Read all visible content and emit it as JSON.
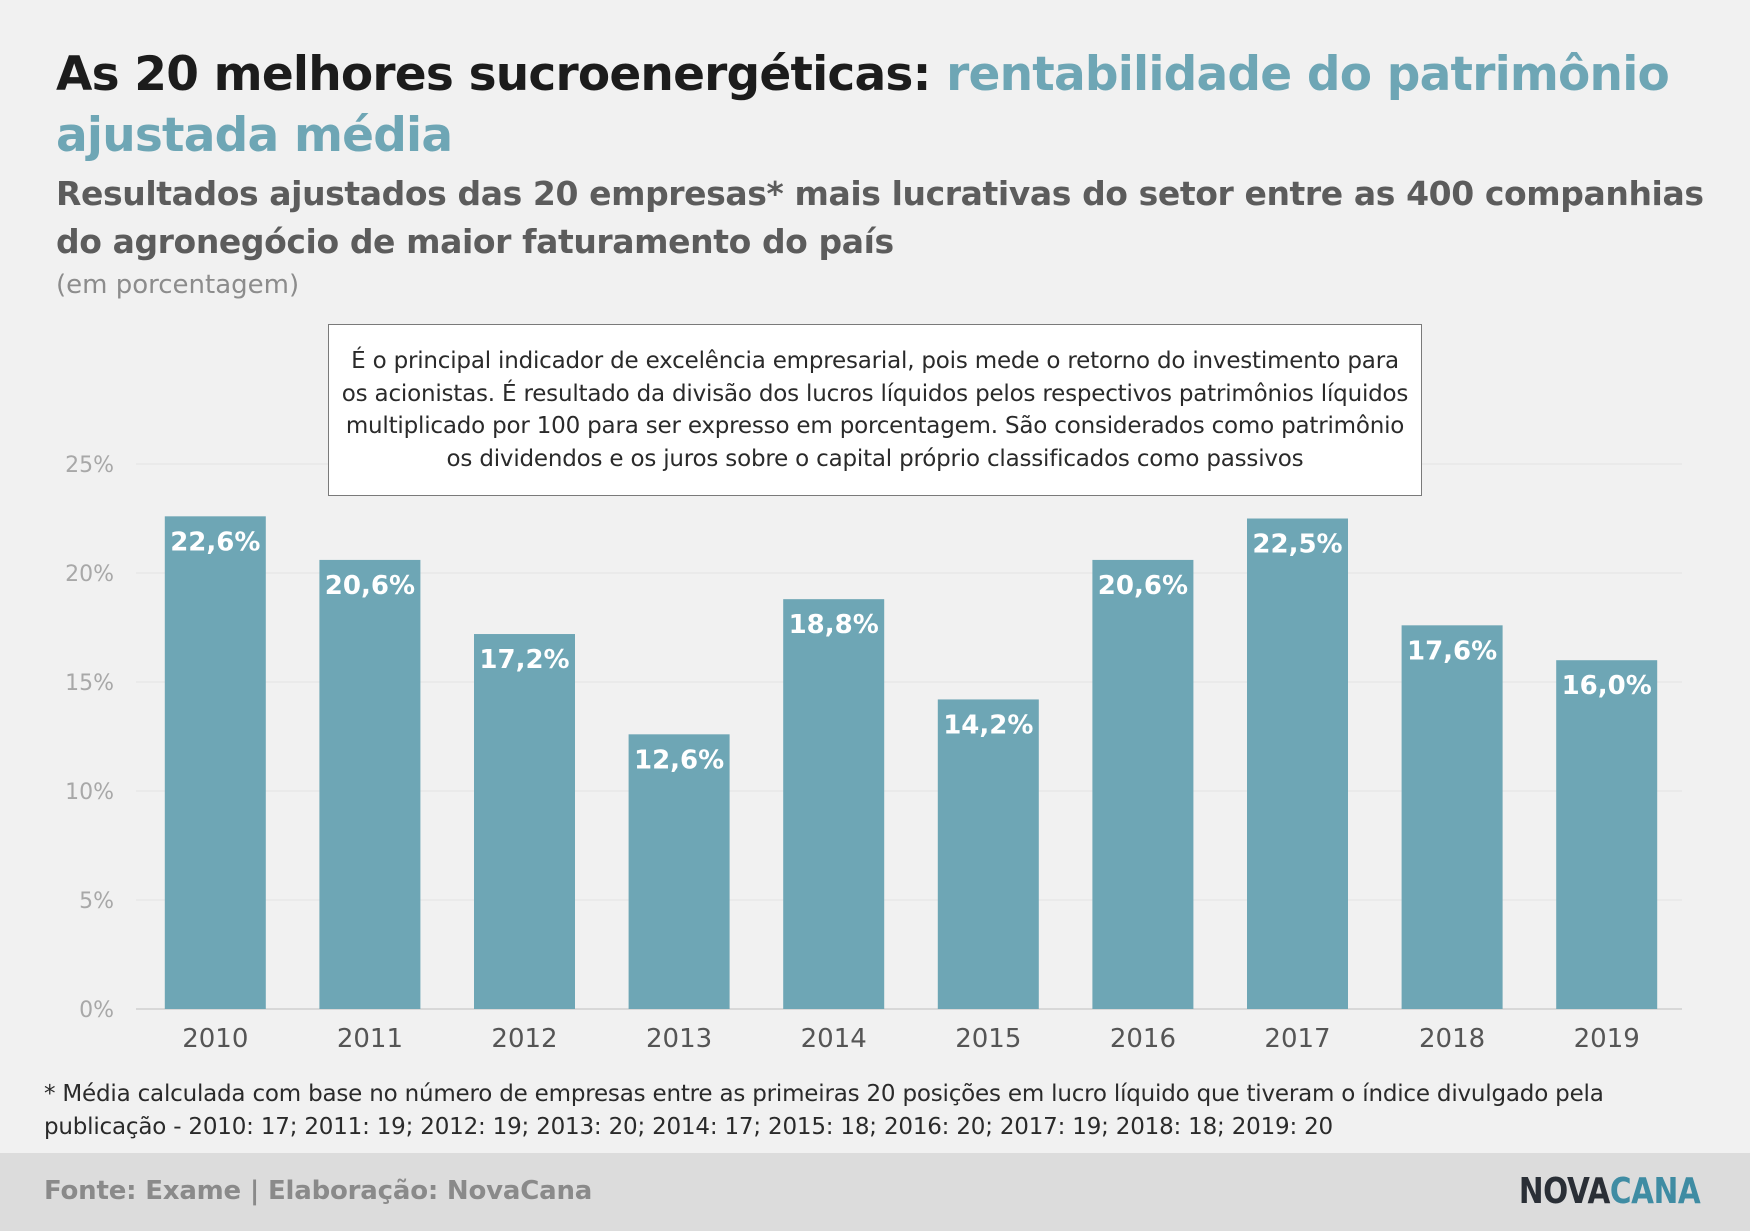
{
  "title": {
    "main": "As 20 melhores sucroenergéticas: ",
    "accent": "rentabilidade do patrimônio ajustada média"
  },
  "subtitle": "Resultados ajustados das 20 empresas* mais lucrativas do setor entre as 400 companhias do agronegócio de maior faturamento do país",
  "unit": "(em porcentagem)",
  "note": "É o principal indicador de excelência empresarial, pois mede o retorno do investimento para os acionistas. É resultado da divisão dos lucros líquidos pelos respectivos patrimônios líquidos multiplicado por 100 para ser expresso em porcentagem. São considerados como patrimônio os dividendos e os juros sobre o capital próprio classificados como passivos",
  "footnote": "* Média calculada com base no número de empresas entre as primeiras 20 posições em lucro líquido que tiveram o índice divulgado pela publicação - 2010: 17; 2011: 19; 2012: 19; 2013: 20; 2014: 17; 2015: 18; 2016: 20; 2017: 19; 2018: 18; 2019: 20",
  "footer": {
    "source": "Fonte: Exame | Elaboração: NovaCana",
    "logo_part1": "NOVA",
    "logo_part2": "CANA"
  },
  "colors": {
    "bar": "#6ea6b5",
    "accent": "#6ea6b5",
    "logo_dark": "#2a2f36",
    "logo_accent": "#3f8ca3"
  },
  "chart_data": {
    "type": "bar",
    "categories": [
      "2010",
      "2011",
      "2012",
      "2013",
      "2014",
      "2015",
      "2016",
      "2017",
      "2018",
      "2019"
    ],
    "values": [
      22.6,
      20.6,
      17.2,
      12.6,
      18.8,
      14.2,
      20.6,
      22.5,
      17.6,
      16.0
    ],
    "value_labels": [
      "22,6%",
      "20,6%",
      "17,2%",
      "12,6%",
      "18,8%",
      "14,2%",
      "20,6%",
      "22,5%",
      "17,6%",
      "16,0%"
    ],
    "ylim": [
      0,
      25
    ],
    "yticks": [
      0,
      5,
      10,
      15,
      20,
      25
    ],
    "ytick_labels": [
      "0%",
      "5%",
      "10%",
      "15%",
      "20%",
      "25%"
    ],
    "grid": true,
    "legend": "none"
  }
}
